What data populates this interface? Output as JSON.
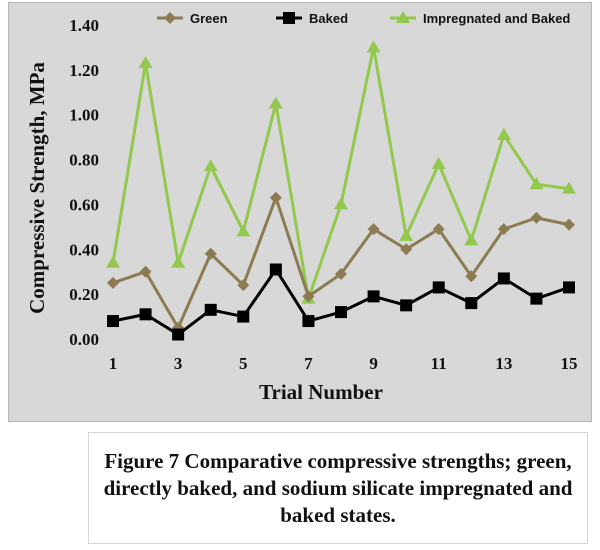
{
  "chart_data": {
    "type": "line",
    "title": "",
    "xlabel": "Trial Number",
    "ylabel": "Compressive Strength, MPa",
    "x": [
      1,
      2,
      3,
      4,
      5,
      6,
      7,
      8,
      9,
      10,
      11,
      12,
      13,
      14,
      15
    ],
    "x_tick_labels": [
      "1",
      "3",
      "5",
      "7",
      "9",
      "11",
      "13",
      "15"
    ],
    "y_tick_labels": [
      "0.00",
      "0.20",
      "0.40",
      "0.60",
      "0.80",
      "1.00",
      "1.20",
      "1.40"
    ],
    "ylim": [
      0,
      1.4
    ],
    "grid": false,
    "legend_position": "top",
    "series": [
      {
        "name": "Green",
        "color": "#8c7b52",
        "marker": "diamond",
        "values": [
          0.25,
          0.3,
          0.05,
          0.38,
          0.24,
          0.63,
          0.19,
          0.29,
          0.49,
          0.4,
          0.49,
          0.28,
          0.49,
          0.54,
          0.51
        ]
      },
      {
        "name": "Baked",
        "color": "#000000",
        "marker": "square",
        "values": [
          0.08,
          0.11,
          0.02,
          0.13,
          0.1,
          0.31,
          0.08,
          0.12,
          0.19,
          0.15,
          0.23,
          0.16,
          0.27,
          0.18,
          0.23
        ]
      },
      {
        "name": "Impregnated and Baked",
        "color": "#92c84d",
        "marker": "triangle",
        "values": [
          0.34,
          1.23,
          0.34,
          0.77,
          0.48,
          1.05,
          0.18,
          0.6,
          1.3,
          0.46,
          0.78,
          0.44,
          0.91,
          0.69,
          0.67
        ]
      }
    ]
  },
  "caption": "Figure 7 Comparative compressive strengths; green, directly baked, and sodium silicate impregnated and baked states."
}
